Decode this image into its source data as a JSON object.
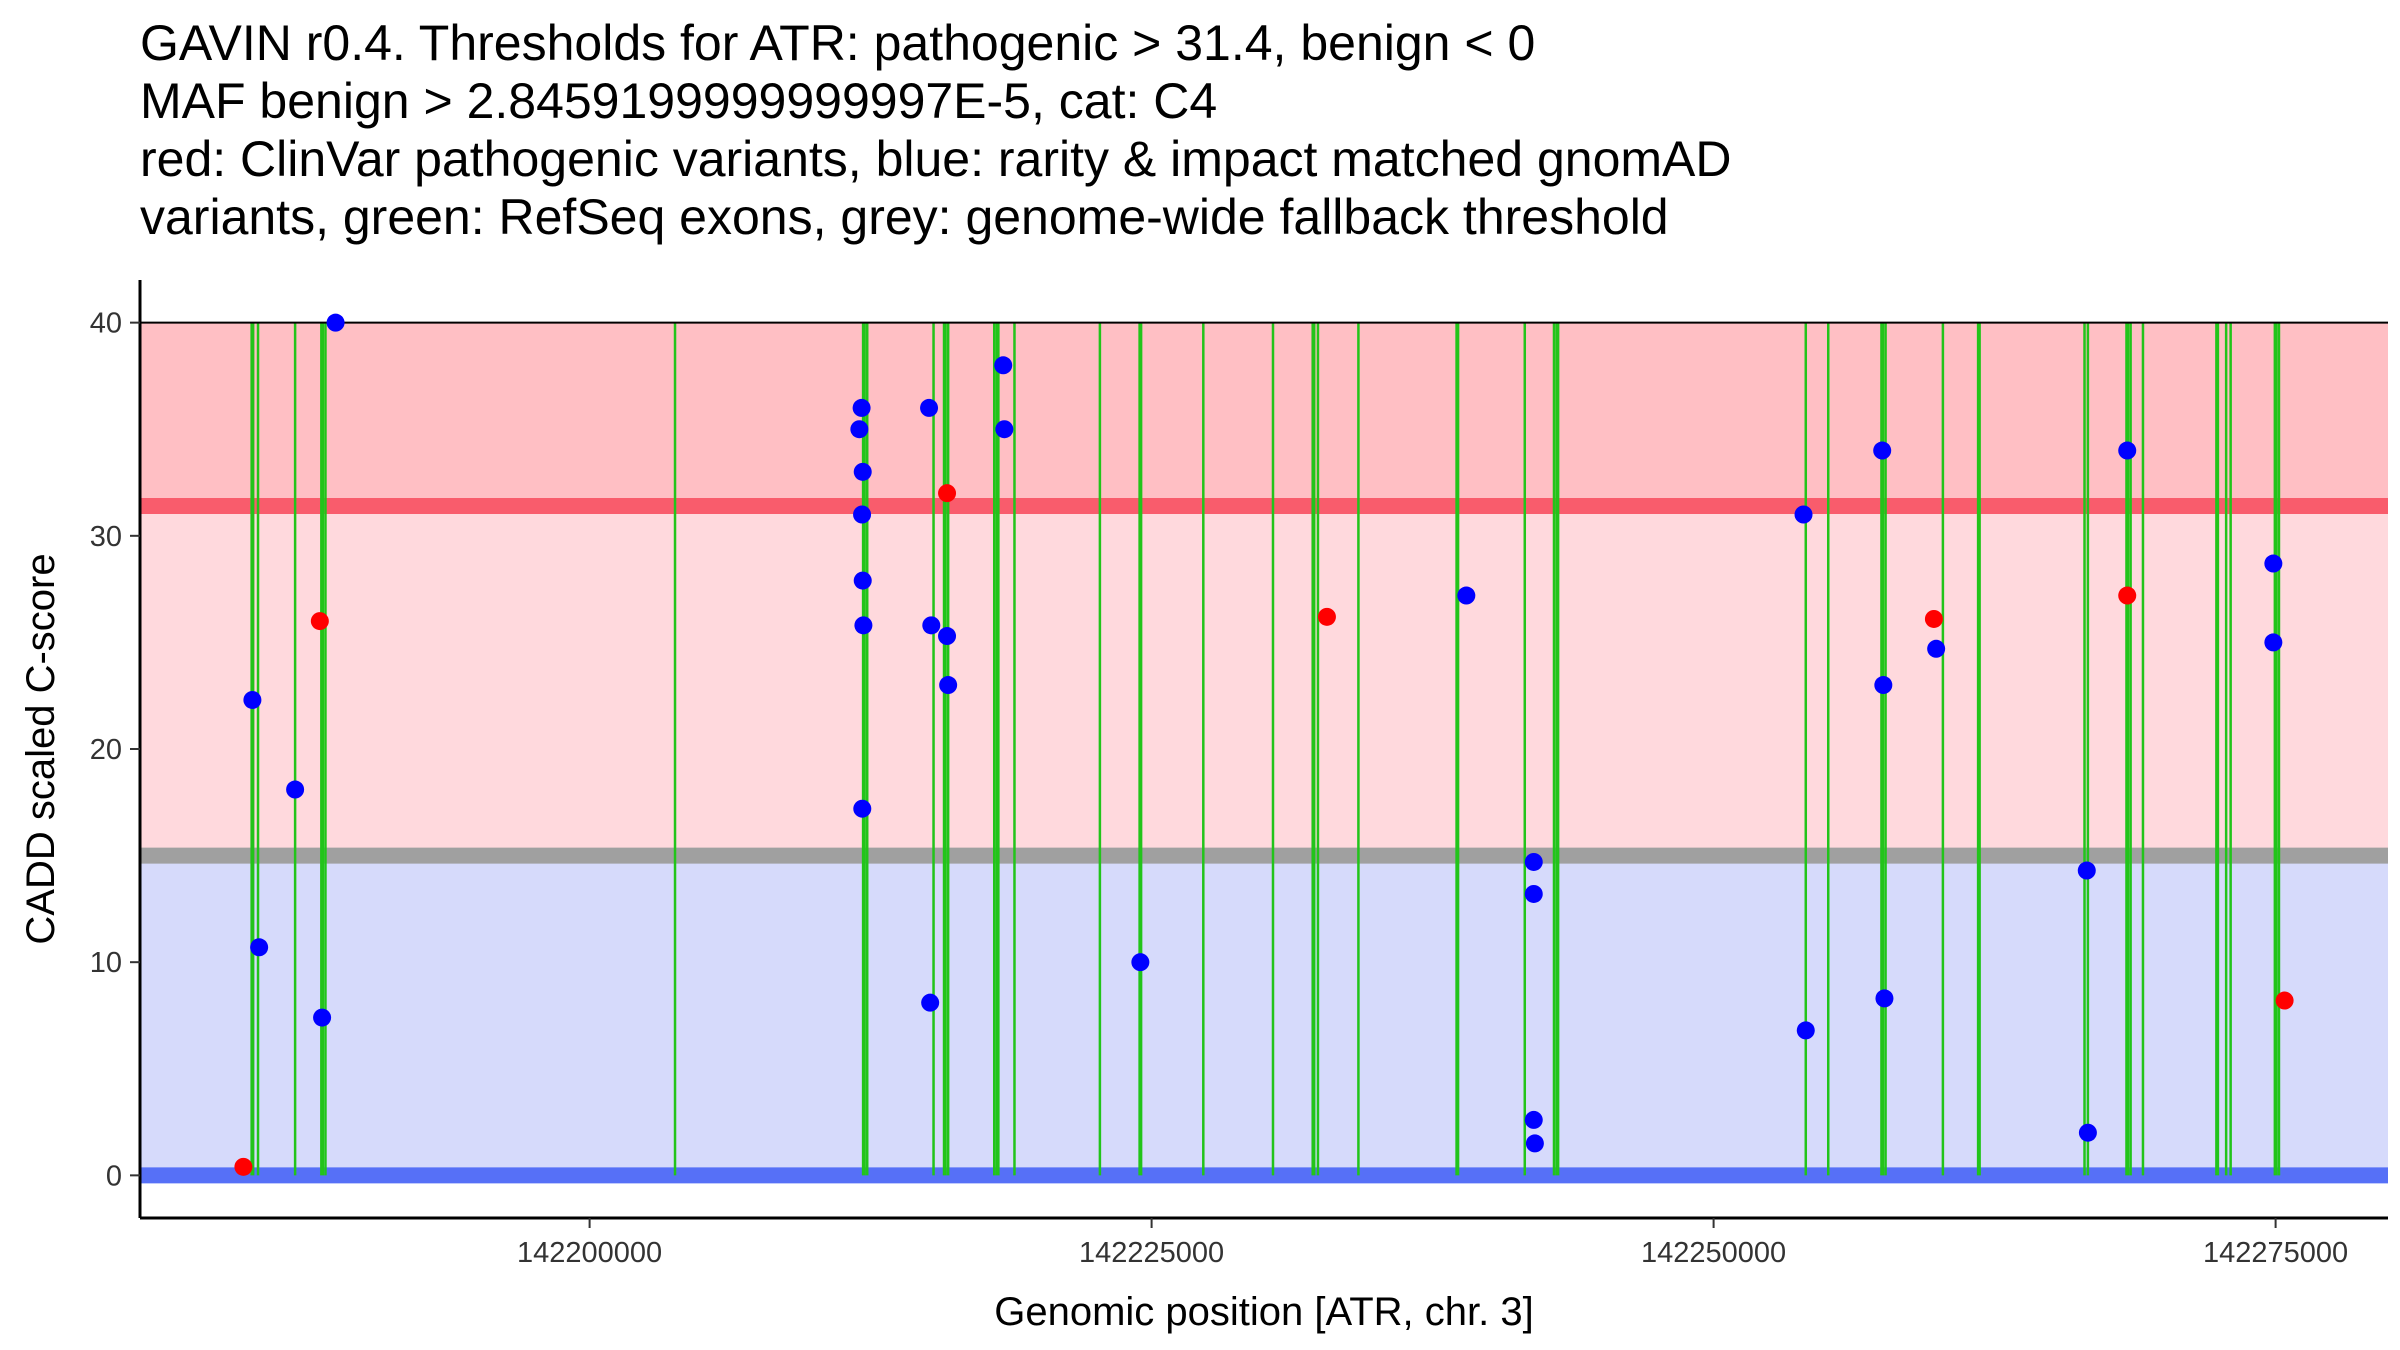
{
  "chart_data": {
    "type": "scatter",
    "title_lines": [
      "GAVIN r0.4. Thresholds for ATR: pathogenic > 31.4, benign < 0",
      "MAF benign > 2.8459199999999997E-5, cat: C4",
      "red: ClinVar pathogenic variants, blue: rarity & impact matched gnomAD",
      "variants, green: RefSeq exons, grey: genome-wide fallback threshold"
    ],
    "xlabel": "Genomic position [ATR, chr. 3]",
    "ylabel": "CADD scaled C-score",
    "xlim": [
      142180000,
      142280000
    ],
    "ylim": [
      -2,
      42
    ],
    "x_ticks": [
      142200000,
      142225000,
      142250000,
      142275000
    ],
    "x_tick_labels": [
      "142200000",
      "142225000",
      "142250000",
      "142275000"
    ],
    "y_ticks": [
      0,
      10,
      20,
      30,
      40
    ],
    "y_tick_labels": [
      "0",
      "10",
      "20",
      "30",
      "40"
    ],
    "bands": [
      {
        "name": "pathogenic-high",
        "from": 31.4,
        "to": 40,
        "color": "#ffbfc4"
      },
      {
        "name": "pathogenic-zone",
        "from": 15,
        "to": 31.4,
        "color": "#ffd9dd"
      },
      {
        "name": "benign-zone",
        "from": 0,
        "to": 15,
        "color": "#d6dafb"
      }
    ],
    "threshold_lines": [
      {
        "name": "pathogenic-threshold",
        "y": 31.4,
        "color": "#f95c6c"
      },
      {
        "name": "fallback-threshold",
        "y": 15,
        "color": "#a0a0a0"
      },
      {
        "name": "benign-threshold",
        "y": 0,
        "color": "#5670f7"
      }
    ],
    "exons": [
      142185000,
      142185250,
      142186900,
      142188100,
      142188250,
      142203800,
      142212200,
      142212350,
      142215300,
      142215800,
      142215950,
      142218000,
      142218150,
      142218900,
      142222700,
      142224500,
      142227300,
      142230400,
      142232200,
      142232400,
      142234200,
      142238600,
      142241600,
      142242900,
      142243050,
      142254100,
      142255100,
      142257500,
      142257650,
      142260200,
      142261800,
      142266500,
      142266650,
      142268400,
      142268550,
      142269100,
      142272400,
      142272800,
      142273000,
      142275000,
      142275150
    ],
    "series": [
      {
        "name": "ClinVar pathogenic variants",
        "color": "#ff0000",
        "x": [
          142184600,
          142188000,
          142215900,
          142232800,
          142259800,
          142268400,
          142275400
        ],
        "y": [
          0.4,
          26.0,
          32.0,
          26.2,
          26.1,
          27.2,
          8.2
        ]
      },
      {
        "name": "gnomAD matched variants",
        "color": "#0000ff",
        "x": [
          142185000,
          142185300,
          142186900,
          142188100,
          142188700,
          142212000,
          142212100,
          142212150,
          142212120,
          142212150,
          142212180,
          142212130,
          142215100,
          142215200,
          142215150,
          142215900,
          142215950,
          142218400,
          142218450,
          142224500,
          142239000,
          142242000,
          142242000,
          142242000,
          142242050,
          142254000,
          142254100,
          142257500,
          142257550,
          142257600,
          142259900,
          142266600,
          142266650,
          142268400,
          142274900,
          142274900
        ],
        "y": [
          22.3,
          10.7,
          18.1,
          7.4,
          40.0,
          35.0,
          36.0,
          33.0,
          31.0,
          27.9,
          25.8,
          17.2,
          36.0,
          25.8,
          8.1,
          25.3,
          23.0,
          38.0,
          35.0,
          10.0,
          27.2,
          14.7,
          13.2,
          2.6,
          1.5,
          31.0,
          6.8,
          34.0,
          23.0,
          8.3,
          24.7,
          14.3,
          2.0,
          34.0,
          28.7,
          25.0
        ]
      }
    ]
  }
}
